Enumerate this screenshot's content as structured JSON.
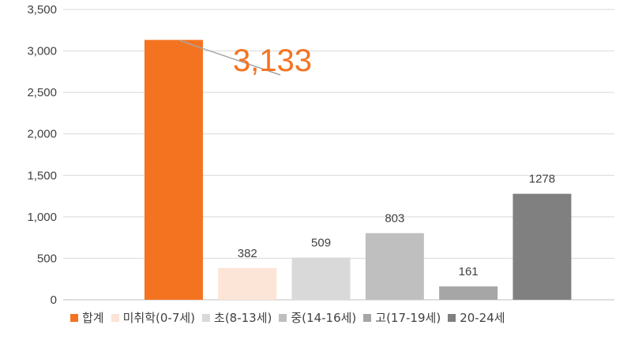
{
  "chart_data": {
    "type": "bar",
    "categories": [
      "합계",
      "미취학(0-7세)",
      "초(8-13세)",
      "중(14-16세)",
      "고(17-19세)",
      "20-24세"
    ],
    "values": [
      3133,
      382,
      509,
      803,
      161,
      1278
    ],
    "data_labels": [
      "3,133",
      "382",
      "509",
      "803",
      "161",
      "1278"
    ],
    "colors": [
      "#F47321",
      "#FCE4D6",
      "#D9D9D9",
      "#BFBFBF",
      "#A6A6A6",
      "#808080"
    ],
    "y_ticks": [
      0,
      500,
      1000,
      1500,
      2000,
      2500,
      3000,
      3500
    ],
    "y_tick_labels": [
      "0",
      "500",
      "1,000",
      "1,500",
      "2,000",
      "2,500",
      "3,000",
      "3,500"
    ],
    "ylim": [
      0,
      3500
    ],
    "grid": true,
    "legend_position": "bottom",
    "callout_color": "#F47321",
    "title": "",
    "xlabel": "",
    "ylabel": ""
  }
}
